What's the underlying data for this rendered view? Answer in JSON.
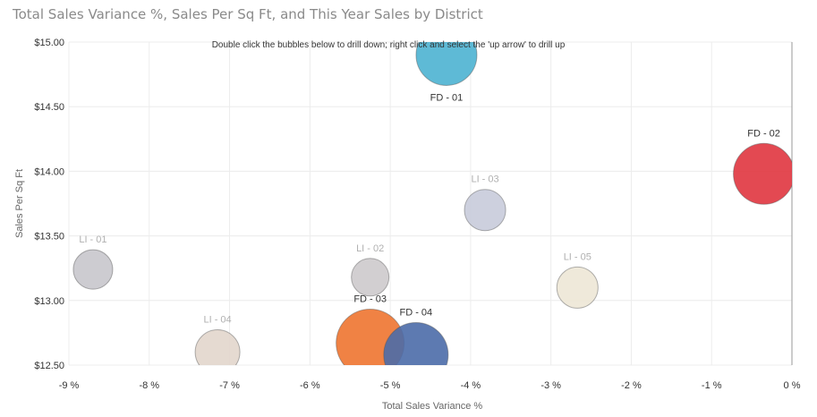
{
  "chart_data": {
    "type": "scatter",
    "title": "Total Sales Variance %, Sales Per Sq Ft, and This Year Sales by District",
    "xlabel": "Total Sales Variance %",
    "ylabel": "Sales Per Sq Ft",
    "annotation": "Double click the bubbles below to drill down; right click and select the 'up arrow' to drill up",
    "xlim": [
      -9,
      0
    ],
    "ylim": [
      12.5,
      15.0
    ],
    "x_ticks": [
      -9,
      -8,
      -7,
      -6,
      -5,
      -4,
      -3,
      -2,
      -1,
      0
    ],
    "x_tick_labels": [
      "-9 %",
      "-8 %",
      "-7 %",
      "-6 %",
      "-5 %",
      "-4 %",
      "-3 %",
      "-2 %",
      "-1 %",
      "0 %"
    ],
    "y_ticks": [
      12.5,
      13.0,
      13.5,
      14.0,
      14.5,
      15.0
    ],
    "y_tick_labels": [
      "$12.50",
      "$13.00",
      "$13.50",
      "$14.00",
      "$14.50",
      "$15.00"
    ],
    "grid": true,
    "points": [
      {
        "label": "FD - 01",
        "x": -4.3,
        "y": 14.9,
        "size": 34,
        "color": "#4cb3d1",
        "label_color": "#333333",
        "label_pos": "below"
      },
      {
        "label": "FD - 02",
        "x": -0.35,
        "y": 13.98,
        "size": 34,
        "color": "#e0353f",
        "label_color": "#333333",
        "label_pos": "above"
      },
      {
        "label": "LI - 03",
        "x": -3.82,
        "y": 13.7,
        "size": 23,
        "color": "#c8cbda",
        "label_color": "#b0b0b0",
        "label_pos": "above"
      },
      {
        "label": "LI - 01",
        "x": -8.7,
        "y": 13.24,
        "size": 22,
        "color": "#c8c6cc",
        "label_color": "#b0b0b0",
        "label_pos": "above"
      },
      {
        "label": "LI - 02",
        "x": -5.25,
        "y": 13.18,
        "size": 21,
        "color": "#cdcacc",
        "label_color": "#b0b0b0",
        "label_pos": "above"
      },
      {
        "label": "LI - 05",
        "x": -2.67,
        "y": 13.1,
        "size": 23,
        "color": "#ede7d6",
        "label_color": "#b0b0b0",
        "label_pos": "above"
      },
      {
        "label": "LI - 04",
        "x": -7.15,
        "y": 12.6,
        "size": 25,
        "color": "#e2d6cc",
        "label_color": "#b0b0b0",
        "label_pos": "above"
      },
      {
        "label": "FD - 03",
        "x": -5.25,
        "y": 12.67,
        "size": 38,
        "color": "#ee7430",
        "label_color": "#333333",
        "label_pos": "above"
      },
      {
        "label": "FD - 04",
        "x": -4.68,
        "y": 12.58,
        "size": 36,
        "color": "#4b6ba8",
        "label_color": "#333333",
        "label_pos": "above"
      }
    ]
  }
}
